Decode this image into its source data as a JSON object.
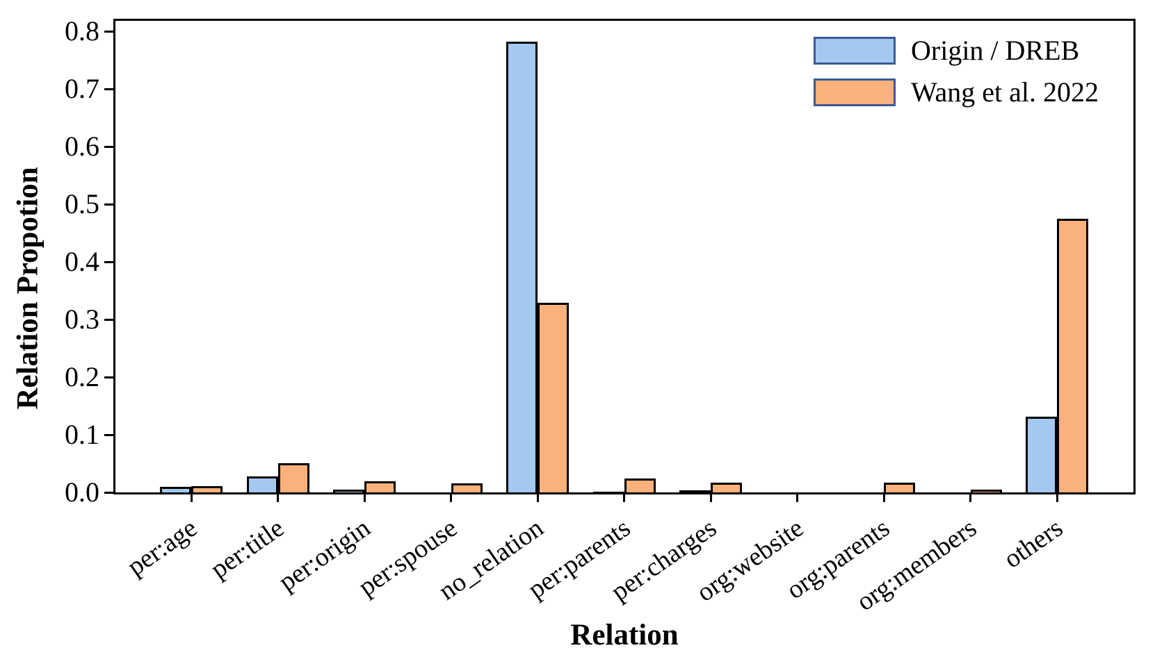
{
  "chart_data": {
    "type": "bar",
    "title": "",
    "xlabel": "Relation",
    "ylabel": "Relation Propotion",
    "categories": [
      "per:age",
      "per:title",
      "per:origin",
      "per:spouse",
      "no_relation",
      "per:parents",
      "per:charges",
      "org:website",
      "org:parents",
      "org:members",
      "others"
    ],
    "series": [
      {
        "name": "Origin / DREB",
        "color": "#a3c9f0",
        "values": [
          0.013,
          0.031,
          0.008,
          0.004,
          0.786,
          0.005,
          0.007,
          0.002,
          0.004,
          0.002,
          0.135
        ]
      },
      {
        "name": "Wang et al. 2022",
        "color": "#fbb17b",
        "values": [
          0.015,
          0.054,
          0.023,
          0.019,
          0.332,
          0.028,
          0.02,
          0.002,
          0.02,
          0.009,
          0.478
        ]
      }
    ],
    "yticks": [
      "0.0",
      "0.1",
      "0.2",
      "0.3",
      "0.4",
      "0.5",
      "0.6",
      "0.7",
      "0.8"
    ],
    "ylim": [
      0,
      0.825
    ],
    "grid": false,
    "legend_position": "upper right",
    "bar_edge_color": "#000000",
    "legend_edge_color": "#3a5a94",
    "x_tick_rotation_deg": 35
  }
}
